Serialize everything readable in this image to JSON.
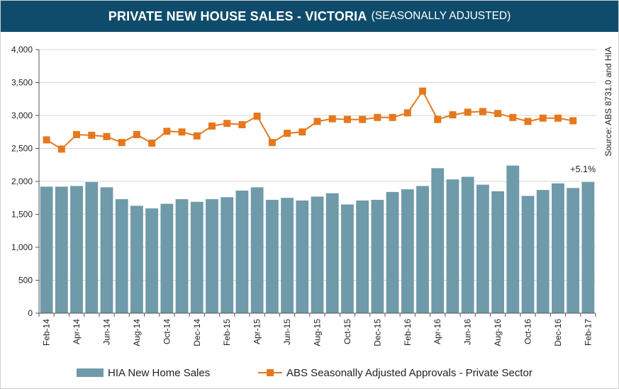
{
  "chart_data": {
    "type": "bar+line",
    "title": "PRIVATE NEW HOUSE SALES -  VICTORIA",
    "subtitle": "(SEASONALLY ADJUSTED)",
    "source": "Source: ABS 8731.0 and HIA",
    "annotation": "+5.1%",
    "ylim": [
      0,
      4000
    ],
    "yticks": [
      "0",
      "500",
      "1,000",
      "1,500",
      "2,000",
      "2,500",
      "3,000",
      "3,500",
      "4,000"
    ],
    "ytick_values": [
      0,
      500,
      1000,
      1500,
      2000,
      2500,
      3000,
      3500,
      4000
    ],
    "xtick_labels": [
      "Feb-14",
      "Apr-14",
      "Jun-14",
      "Aug-14",
      "Oct-14",
      "Dec-14",
      "Feb-15",
      "Apr-15",
      "Jun-15",
      "Aug-15",
      "Oct-15",
      "Dec-15",
      "Feb-16",
      "Apr-16",
      "Jun-16",
      "Aug-16",
      "Oct-16",
      "Dec-16",
      "Feb-17"
    ],
    "months": 37,
    "series": [
      {
        "name": "HIA New Home Sales",
        "kind": "bar",
        "color": "#6f9aa9",
        "values": [
          1920,
          1920,
          1930,
          1990,
          1910,
          1730,
          1630,
          1590,
          1660,
          1730,
          1690,
          1730,
          1760,
          1860,
          1910,
          1720,
          1750,
          1710,
          1770,
          1820,
          1650,
          1710,
          1720,
          1840,
          1880,
          1930,
          2200,
          2030,
          2070,
          1950,
          1850,
          2240,
          1780,
          1870,
          1970,
          1900,
          1990
        ]
      },
      {
        "name": "ABS Seasonally Adjusted Approvals - Private Sector",
        "kind": "line",
        "color": "#e5781f",
        "values": [
          2630,
          2490,
          2710,
          2700,
          2680,
          2590,
          2710,
          2580,
          2760,
          2750,
          2690,
          2840,
          2880,
          2860,
          2990,
          2590,
          2730,
          2750,
          2910,
          2950,
          2940,
          2940,
          2970,
          2970,
          3040,
          3370,
          2940,
          3010,
          3050,
          3060,
          3030,
          2970,
          2910,
          2960,
          2960,
          2920,
          null
        ]
      }
    ]
  }
}
